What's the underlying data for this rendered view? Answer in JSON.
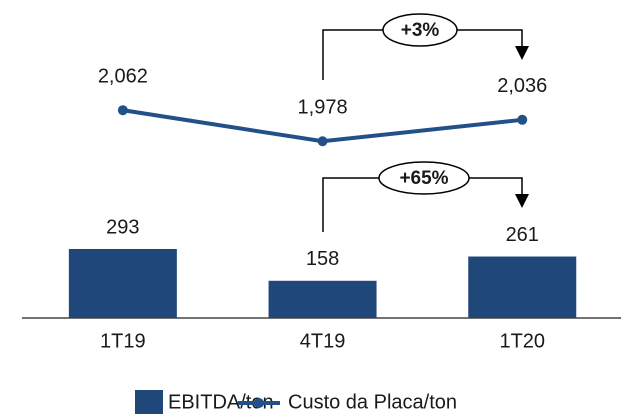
{
  "chart_data": {
    "type": "bar-line",
    "categories": [
      "1T19",
      "4T19",
      "1T20"
    ],
    "series": [
      {
        "name": "EBITDA/ton",
        "type": "bar",
        "color": "#1f477a",
        "values": [
          293,
          158,
          261
        ]
      },
      {
        "name": "Custo da Placa/ton",
        "type": "line",
        "axis": "y2",
        "color": "#24508a",
        "values": [
          2062,
          1978,
          2036
        ],
        "value_labels": [
          "2,062",
          "1,978",
          "2,036"
        ]
      }
    ],
    "ylim": [
      0,
      1350
    ],
    "y2lim": [
      1500,
      2360
    ],
    "annotations": [
      "+3%",
      "+65%"
    ],
    "legend": "bottom"
  }
}
